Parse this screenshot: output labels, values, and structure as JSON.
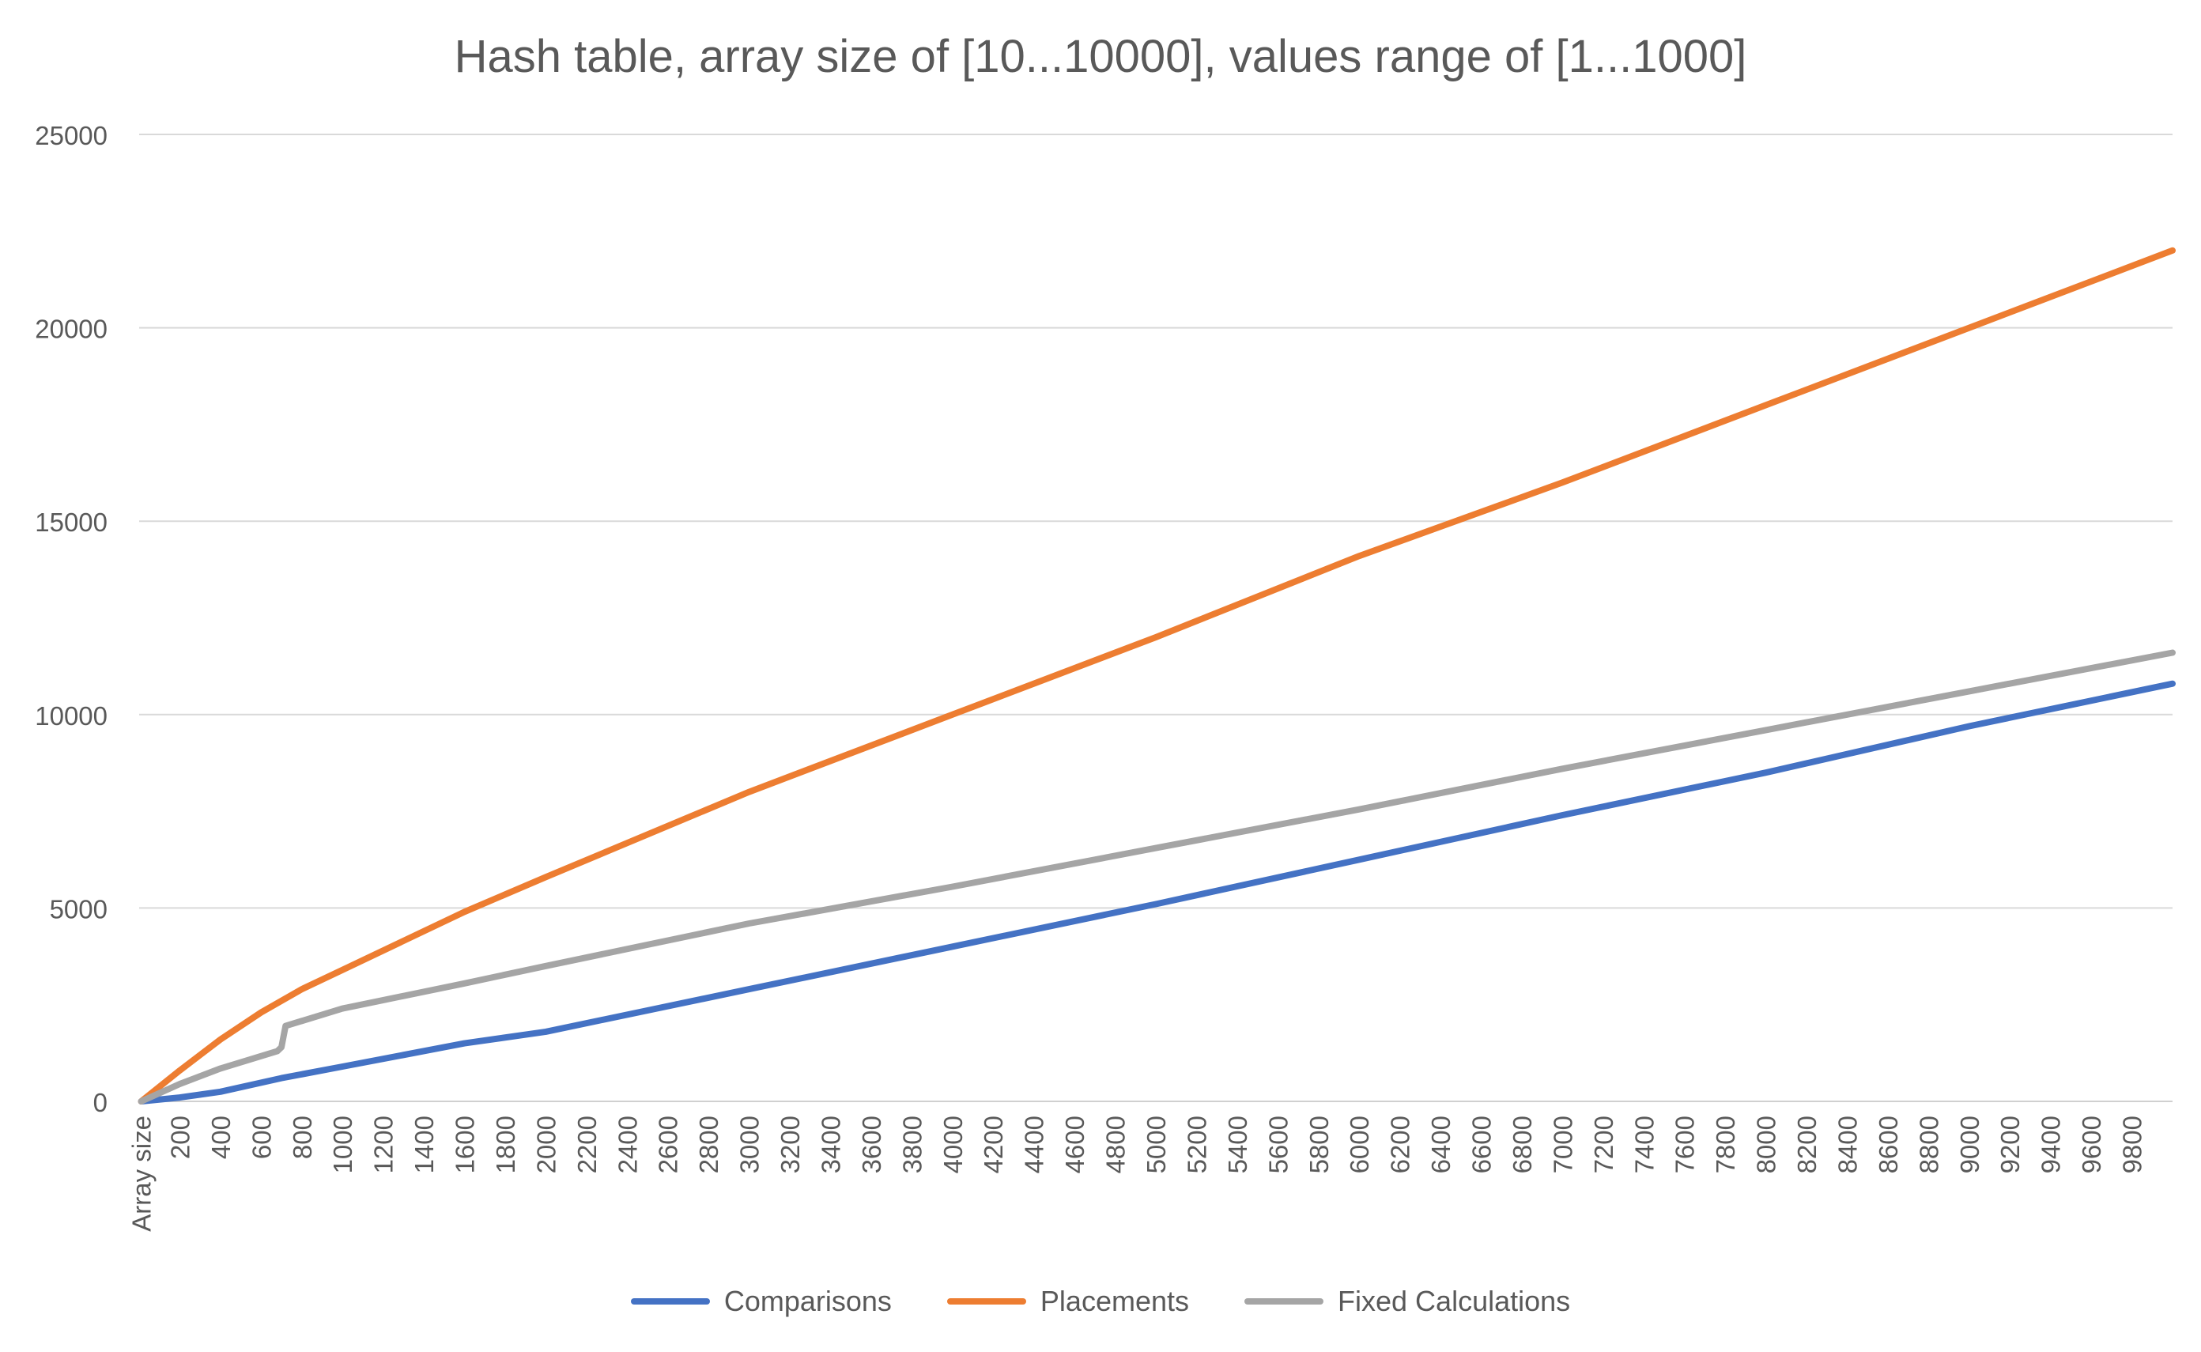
{
  "chart_data": {
    "type": "line",
    "title": "Hash table, array size of [10...10000], values range of [1...1000]",
    "xlabel": "",
    "ylabel": "",
    "x_first_tick_label": "Array size",
    "x_tick_labels": [
      "200",
      "400",
      "600",
      "800",
      "1000",
      "1200",
      "1400",
      "1600",
      "1800",
      "2000",
      "2200",
      "2400",
      "2600",
      "2800",
      "3000",
      "3200",
      "3400",
      "3600",
      "3800",
      "4000",
      "4200",
      "4400",
      "4600",
      "4800",
      "5000",
      "5200",
      "5400",
      "5600",
      "5800",
      "6000",
      "6200",
      "6400",
      "6600",
      "6800",
      "7000",
      "7200",
      "7400",
      "7600",
      "7800",
      "8000",
      "8200",
      "8400",
      "8600",
      "8800",
      "9000",
      "9200",
      "9400",
      "9600",
      "9800"
    ],
    "xlim": [
      0,
      10000
    ],
    "ylim": [
      0,
      25000
    ],
    "y_ticks": [
      0,
      5000,
      10000,
      15000,
      20000,
      25000
    ],
    "grid": true,
    "legend_position": "bottom",
    "series": [
      {
        "name": "Comparisons",
        "color": "#4472C4",
        "x": [
          10,
          200,
          400,
          700,
          1000,
          1600,
          2000,
          3000,
          4000,
          5000,
          6000,
          7000,
          8000,
          9000,
          10000
        ],
        "y": [
          0,
          100,
          250,
          600,
          900,
          1500,
          1800,
          2900,
          4000,
          5100,
          6250,
          7400,
          8500,
          9700,
          10800
        ]
      },
      {
        "name": "Placements",
        "color": "#ED7D31",
        "x": [
          10,
          200,
          400,
          600,
          800,
          1000,
          1600,
          2000,
          3000,
          4000,
          5000,
          6000,
          7000,
          8000,
          9000,
          10000
        ],
        "y": [
          0,
          800,
          1600,
          2300,
          2900,
          3400,
          4900,
          5800,
          8000,
          10000,
          12000,
          14100,
          16000,
          18000,
          20000,
          22000
        ]
      },
      {
        "name": "Fixed Calculations",
        "color": "#A5A5A5",
        "x": [
          10,
          200,
          400,
          680,
          700,
          720,
          1000,
          1600,
          2000,
          3000,
          4000,
          5000,
          6000,
          7000,
          8000,
          9000,
          10000
        ],
        "y": [
          0,
          450,
          850,
          1300,
          1400,
          1950,
          2400,
          3050,
          3500,
          4600,
          5550,
          6550,
          7550,
          8600,
          9600,
          10600,
          11600
        ]
      }
    ]
  }
}
